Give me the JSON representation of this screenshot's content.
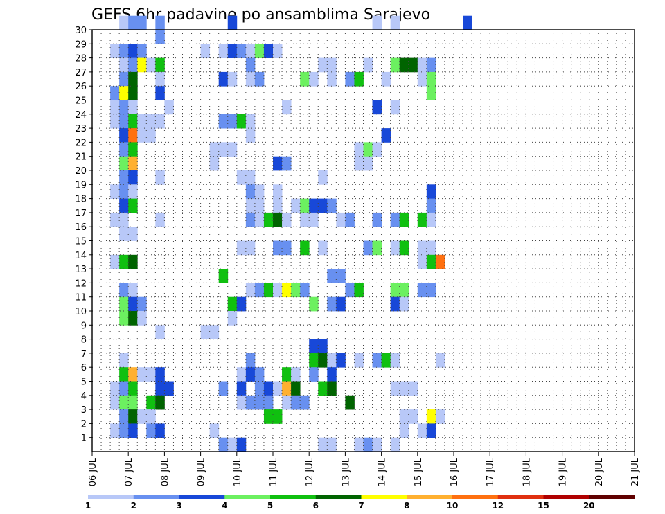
{
  "chart_data": {
    "type": "heatmap",
    "title": "GEFS 6hr padavine po ansamblima Sarajevo",
    "xlabel": "",
    "ylabel": "",
    "x_tick_labels": [
      "06 JUL",
      "07 JUL",
      "08 JUL",
      "09 JUL",
      "10 JUL",
      "11 JUL",
      "12 JUL",
      "13 JUL",
      "14 JUL",
      "15 JUL",
      "16 JUL",
      "17 JUL",
      "18 JUL",
      "19 JUL",
      "20 JUL",
      "21 JUL"
    ],
    "y_tick_labels": [
      "1",
      "2",
      "3",
      "4",
      "5",
      "6",
      "7",
      "8",
      "9",
      "10",
      "11",
      "12",
      "13",
      "14",
      "15",
      "16",
      "17",
      "18",
      "19",
      "20",
      "21",
      "22",
      "23",
      "24",
      "25",
      "26",
      "27",
      "28",
      "29",
      "30"
    ],
    "x_range": [
      "06 JUL 00Z",
      "21 JUL 00Z"
    ],
    "time_step_hours": 6,
    "y_range": [
      0,
      30
    ],
    "grid": "dotted",
    "colorbar": {
      "position": "bottom",
      "levels": [
        1,
        2,
        3,
        4,
        5,
        6,
        7,
        8,
        10,
        12,
        15,
        20
      ],
      "colors": [
        "#b8c8f8",
        "#6890f0",
        "#1848d8",
        "#6cf060",
        "#10c010",
        "#006400",
        "#ffff00",
        "#ffb030",
        "#ff7010",
        "#e03010",
        "#b00000",
        "#600000"
      ]
    },
    "value_unit": "color class index (1-12 = bins between colorbar levels)",
    "cells": [
      [
        30,
        1,
        1
      ],
      [
        30,
        2,
        2
      ],
      [
        30,
        3,
        2
      ],
      [
        30,
        5,
        2
      ],
      [
        30,
        13,
        3
      ],
      [
        30,
        29,
        1
      ],
      [
        30,
        31,
        1
      ],
      [
        30,
        39,
        3
      ],
      [
        29,
        5,
        2
      ],
      [
        28,
        0,
        1
      ],
      [
        28,
        1,
        2
      ],
      [
        28,
        2,
        3
      ],
      [
        28,
        3,
        2
      ],
      [
        28,
        10,
        1
      ],
      [
        28,
        12,
        1
      ],
      [
        28,
        13,
        3
      ],
      [
        28,
        14,
        2
      ],
      [
        28,
        15,
        1
      ],
      [
        28,
        16,
        4
      ],
      [
        28,
        17,
        3
      ],
      [
        28,
        18,
        1
      ],
      [
        27,
        1,
        1
      ],
      [
        27,
        2,
        2
      ],
      [
        27,
        3,
        7
      ],
      [
        27,
        4,
        1
      ],
      [
        27,
        5,
        5
      ],
      [
        27,
        15,
        2
      ],
      [
        27,
        23,
        1
      ],
      [
        27,
        24,
        1
      ],
      [
        27,
        28,
        1
      ],
      [
        27,
        31,
        4
      ],
      [
        27,
        32,
        6
      ],
      [
        27,
        33,
        6
      ],
      [
        27,
        34,
        1
      ],
      [
        27,
        35,
        2
      ],
      [
        26,
        1,
        2
      ],
      [
        26,
        2,
        6
      ],
      [
        26,
        5,
        1
      ],
      [
        26,
        12,
        3
      ],
      [
        26,
        13,
        1
      ],
      [
        26,
        15,
        1
      ],
      [
        26,
        16,
        2
      ],
      [
        26,
        21,
        4
      ],
      [
        26,
        22,
        1
      ],
      [
        26,
        24,
        1
      ],
      [
        26,
        26,
        2
      ],
      [
        26,
        27,
        5
      ],
      [
        26,
        30,
        1
      ],
      [
        26,
        34,
        1
      ],
      [
        26,
        35,
        4
      ],
      [
        25,
        0,
        2
      ],
      [
        25,
        1,
        7
      ],
      [
        25,
        2,
        6
      ],
      [
        25,
        5,
        3
      ],
      [
        25,
        35,
        4
      ],
      [
        24,
        0,
        1
      ],
      [
        24,
        1,
        2
      ],
      [
        24,
        2,
        1
      ],
      [
        24,
        6,
        1
      ],
      [
        24,
        19,
        1
      ],
      [
        24,
        29,
        3
      ],
      [
        24,
        31,
        1
      ],
      [
        23,
        0,
        1
      ],
      [
        23,
        1,
        2
      ],
      [
        23,
        2,
        5
      ],
      [
        23,
        3,
        1
      ],
      [
        23,
        4,
        1
      ],
      [
        23,
        5,
        1
      ],
      [
        23,
        12,
        2
      ],
      [
        23,
        13,
        2
      ],
      [
        23,
        14,
        5
      ],
      [
        23,
        15,
        1
      ],
      [
        22,
        1,
        3
      ],
      [
        22,
        2,
        9
      ],
      [
        22,
        3,
        1
      ],
      [
        22,
        4,
        1
      ],
      [
        22,
        15,
        1
      ],
      [
        22,
        30,
        3
      ],
      [
        21,
        1,
        2
      ],
      [
        21,
        2,
        5
      ],
      [
        21,
        11,
        1
      ],
      [
        21,
        12,
        1
      ],
      [
        21,
        13,
        1
      ],
      [
        21,
        27,
        1
      ],
      [
        21,
        28,
        4
      ],
      [
        21,
        29,
        1
      ],
      [
        20,
        1,
        4
      ],
      [
        20,
        2,
        8
      ],
      [
        20,
        11,
        1
      ],
      [
        20,
        18,
        3
      ],
      [
        20,
        19,
        2
      ],
      [
        20,
        27,
        1
      ],
      [
        20,
        28,
        1
      ],
      [
        19,
        1,
        2
      ],
      [
        19,
        2,
        3
      ],
      [
        19,
        5,
        1
      ],
      [
        19,
        14,
        1
      ],
      [
        19,
        15,
        1
      ],
      [
        19,
        23,
        1
      ],
      [
        18,
        0,
        1
      ],
      [
        18,
        1,
        2
      ],
      [
        18,
        2,
        1
      ],
      [
        18,
        15,
        2
      ],
      [
        18,
        16,
        1
      ],
      [
        18,
        18,
        1
      ],
      [
        18,
        35,
        3
      ],
      [
        17,
        1,
        3
      ],
      [
        17,
        2,
        5
      ],
      [
        17,
        15,
        1
      ],
      [
        17,
        16,
        1
      ],
      [
        17,
        18,
        1
      ],
      [
        17,
        20,
        1
      ],
      [
        17,
        21,
        4
      ],
      [
        17,
        22,
        3
      ],
      [
        17,
        23,
        3
      ],
      [
        17,
        24,
        2
      ],
      [
        17,
        35,
        2
      ],
      [
        16,
        0,
        1
      ],
      [
        16,
        1,
        1
      ],
      [
        16,
        5,
        1
      ],
      [
        16,
        15,
        2
      ],
      [
        16,
        16,
        1
      ],
      [
        16,
        17,
        5
      ],
      [
        16,
        18,
        6
      ],
      [
        16,
        19,
        1
      ],
      [
        16,
        21,
        1
      ],
      [
        16,
        22,
        1
      ],
      [
        16,
        25,
        1
      ],
      [
        16,
        26,
        2
      ],
      [
        16,
        29,
        2
      ],
      [
        16,
        31,
        2
      ],
      [
        16,
        32,
        5
      ],
      [
        16,
        34,
        5
      ],
      [
        16,
        35,
        1
      ],
      [
        15,
        1,
        1
      ],
      [
        15,
        2,
        1
      ],
      [
        14,
        14,
        1
      ],
      [
        14,
        15,
        1
      ],
      [
        14,
        18,
        2
      ],
      [
        14,
        19,
        2
      ],
      [
        14,
        21,
        5
      ],
      [
        14,
        23,
        1
      ],
      [
        14,
        28,
        2
      ],
      [
        14,
        29,
        4
      ],
      [
        14,
        31,
        1
      ],
      [
        14,
        32,
        5
      ],
      [
        14,
        34,
        1
      ],
      [
        14,
        35,
        1
      ],
      [
        13,
        0,
        1
      ],
      [
        13,
        1,
        5
      ],
      [
        13,
        2,
        6
      ],
      [
        13,
        34,
        1
      ],
      [
        13,
        35,
        5
      ],
      [
        13,
        36,
        9
      ],
      [
        12,
        12,
        5
      ],
      [
        12,
        24,
        2
      ],
      [
        12,
        25,
        2
      ],
      [
        11,
        1,
        2
      ],
      [
        11,
        2,
        1
      ],
      [
        11,
        15,
        1
      ],
      [
        11,
        16,
        2
      ],
      [
        11,
        17,
        5
      ],
      [
        11,
        18,
        1
      ],
      [
        11,
        19,
        7
      ],
      [
        11,
        20,
        4
      ],
      [
        11,
        21,
        2
      ],
      [
        11,
        26,
        2
      ],
      [
        11,
        27,
        5
      ],
      [
        11,
        31,
        4
      ],
      [
        11,
        32,
        4
      ],
      [
        11,
        34,
        2
      ],
      [
        11,
        35,
        2
      ],
      [
        10,
        1,
        4
      ],
      [
        10,
        2,
        3
      ],
      [
        10,
        3,
        2
      ],
      [
        10,
        13,
        5
      ],
      [
        10,
        14,
        3
      ],
      [
        10,
        22,
        4
      ],
      [
        10,
        24,
        2
      ],
      [
        10,
        25,
        3
      ],
      [
        10,
        31,
        3
      ],
      [
        10,
        32,
        1
      ],
      [
        9,
        1,
        4
      ],
      [
        9,
        2,
        6
      ],
      [
        9,
        3,
        1
      ],
      [
        9,
        13,
        1
      ],
      [
        8,
        5,
        1
      ],
      [
        8,
        10,
        1
      ],
      [
        8,
        11,
        1
      ],
      [
        7,
        22,
        3
      ],
      [
        7,
        23,
        3
      ],
      [
        6,
        1,
        1
      ],
      [
        6,
        15,
        2
      ],
      [
        6,
        22,
        5
      ],
      [
        6,
        23,
        6
      ],
      [
        6,
        24,
        1
      ],
      [
        6,
        25,
        3
      ],
      [
        6,
        27,
        1
      ],
      [
        6,
        29,
        2
      ],
      [
        6,
        30,
        5
      ],
      [
        6,
        31,
        1
      ],
      [
        6,
        36,
        1
      ],
      [
        5,
        1,
        5
      ],
      [
        5,
        2,
        8
      ],
      [
        5,
        3,
        1
      ],
      [
        5,
        4,
        1
      ],
      [
        5,
        5,
        3
      ],
      [
        5,
        14,
        1
      ],
      [
        5,
        15,
        3
      ],
      [
        5,
        16,
        2
      ],
      [
        5,
        19,
        5
      ],
      [
        5,
        20,
        1
      ],
      [
        5,
        22,
        2
      ],
      [
        5,
        24,
        3
      ],
      [
        4,
        0,
        1
      ],
      [
        4,
        1,
        2
      ],
      [
        4,
        2,
        5
      ],
      [
        4,
        5,
        3
      ],
      [
        4,
        6,
        3
      ],
      [
        4,
        12,
        2
      ],
      [
        4,
        14,
        3
      ],
      [
        4,
        16,
        2
      ],
      [
        4,
        17,
        3
      ],
      [
        4,
        18,
        1
      ],
      [
        4,
        19,
        8
      ],
      [
        4,
        20,
        6
      ],
      [
        4,
        23,
        5
      ],
      [
        4,
        24,
        6
      ],
      [
        4,
        31,
        1
      ],
      [
        4,
        32,
        1
      ],
      [
        4,
        33,
        1
      ],
      [
        3,
        0,
        1
      ],
      [
        3,
        1,
        4
      ],
      [
        3,
        2,
        4
      ],
      [
        3,
        4,
        5
      ],
      [
        3,
        5,
        6
      ],
      [
        3,
        14,
        1
      ],
      [
        3,
        15,
        2
      ],
      [
        3,
        16,
        2
      ],
      [
        3,
        17,
        2
      ],
      [
        3,
        19,
        1
      ],
      [
        3,
        20,
        2
      ],
      [
        3,
        21,
        2
      ],
      [
        3,
        26,
        6
      ],
      [
        2,
        1,
        2
      ],
      [
        2,
        2,
        6
      ],
      [
        2,
        3,
        1
      ],
      [
        2,
        4,
        1
      ],
      [
        2,
        17,
        5
      ],
      [
        2,
        18,
        5
      ],
      [
        2,
        32,
        1
      ],
      [
        2,
        33,
        1
      ],
      [
        2,
        35,
        7
      ],
      [
        2,
        36,
        1
      ],
      [
        1,
        0,
        1
      ],
      [
        1,
        1,
        2
      ],
      [
        1,
        2,
        3
      ],
      [
        1,
        4,
        2
      ],
      [
        1,
        5,
        3
      ],
      [
        1,
        11,
        1
      ],
      [
        1,
        32,
        1
      ],
      [
        1,
        34,
        1
      ],
      [
        1,
        35,
        3
      ],
      [
        0,
        12,
        2
      ],
      [
        0,
        13,
        1
      ],
      [
        0,
        14,
        3
      ],
      [
        0,
        23,
        1
      ],
      [
        0,
        24,
        1
      ],
      [
        0,
        27,
        1
      ],
      [
        0,
        28,
        2
      ],
      [
        0,
        29,
        1
      ],
      [
        0,
        31,
        1
      ]
    ]
  }
}
